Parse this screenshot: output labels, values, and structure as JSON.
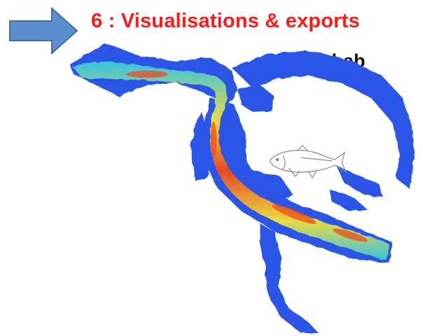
{
  "slide": {
    "title": "6 : Visualisations & exports",
    "file_extension": ".hab",
    "arrow_icon": "right-arrow-icon",
    "fish_icon": "fish-drawing-icon",
    "colors": {
      "title": "#ff1a1a",
      "arrow_fill": "#5b8fce",
      "arrow_stroke": "#3f6fa8",
      "water_base": "#2b54e6",
      "habitat_high": "#f04a1c",
      "habitat_mid": "#f5e23a",
      "habitat_low": "#39c9e0"
    }
  }
}
